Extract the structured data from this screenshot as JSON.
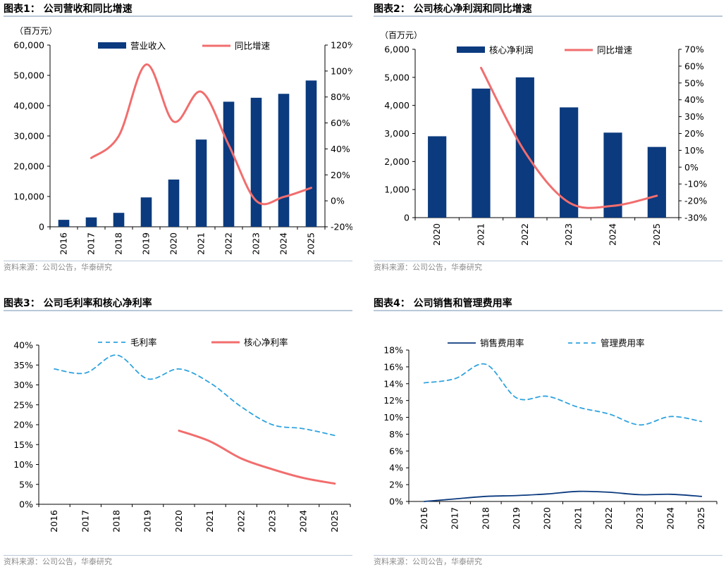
{
  "panels": [
    {
      "title": "图表1： 公司营收和同比增速",
      "source": "资料来源：公司公告，华泰研究"
    },
    {
      "title": "图表2： 公司核心净利润和同比增速",
      "source": "资料来源：公司公告，华泰研究"
    },
    {
      "title": "图表3： 公司毛利率和核心净利率",
      "source": "资料来源：公司公告，华泰研究"
    },
    {
      "title": "图表4： 公司销售和管理费用率",
      "source": "资料来源：公司公告，华泰研究"
    }
  ],
  "colors": {
    "bar": "#0b3a7e",
    "line": "#f26d6d",
    "dashed": "#2ea3df"
  },
  "chart_data": [
    {
      "type": "bar",
      "title": "公司营收和同比增速",
      "unit": "（百万元）",
      "categories": [
        "2016",
        "2017",
        "2018",
        "2019",
        "2020",
        "2021",
        "2022",
        "2023",
        "2024",
        "2025"
      ],
      "series": [
        {
          "name": "营业收入",
          "kind": "bar",
          "axis": "left",
          "values": [
            2300,
            3100,
            4600,
            9700,
            15600,
            28800,
            41300,
            42600,
            43900,
            48300
          ]
        },
        {
          "name": "同比增速",
          "kind": "line",
          "axis": "right",
          "values": [
            null,
            33,
            50,
            105,
            61,
            84,
            43,
            0,
            3,
            10
          ]
        }
      ],
      "ylim": [
        0,
        60000
      ],
      "yticks": [
        "0",
        "10,000",
        "20,000",
        "30,000",
        "40,000",
        "50,000",
        "60,000"
      ],
      "y2lim": [
        -20,
        120
      ],
      "y2ticks": [
        "-20%",
        "0%",
        "20%",
        "40%",
        "60%",
        "80%",
        "100%",
        "120%"
      ]
    },
    {
      "type": "bar",
      "title": "公司核心净利润和同比增速",
      "unit": "（百万元）",
      "categories": [
        "2020",
        "2021",
        "2022",
        "2023",
        "2024",
        "2025"
      ],
      "series": [
        {
          "name": "核心净利润",
          "kind": "bar",
          "axis": "left",
          "values": [
            2900,
            4600,
            5000,
            3930,
            3030,
            2520
          ]
        },
        {
          "name": "同比增速",
          "kind": "line",
          "axis": "right",
          "values": [
            null,
            59,
            9,
            -21,
            -23,
            -17
          ]
        }
      ],
      "ylim": [
        0,
        6000
      ],
      "yticks": [
        "0",
        "1,000",
        "2,000",
        "3,000",
        "4,000",
        "5,000",
        "6,000"
      ],
      "y2lim": [
        -30,
        70
      ],
      "y2ticks": [
        "-30%",
        "-20%",
        "-10%",
        "0%",
        "10%",
        "20%",
        "30%",
        "40%",
        "50%",
        "60%",
        "70%"
      ]
    },
    {
      "type": "line",
      "title": "公司毛利率和核心净利率",
      "categories": [
        "2016",
        "2017",
        "2018",
        "2019",
        "2020",
        "2021",
        "2022",
        "2023",
        "2024",
        "2025"
      ],
      "series": [
        {
          "name": "毛利率",
          "style": "dashed",
          "values": [
            34,
            33,
            37.5,
            31.5,
            34,
            30.5,
            24.5,
            20,
            19,
            17.3
          ]
        },
        {
          "name": "核心净利率",
          "style": "solid",
          "values": [
            null,
            null,
            null,
            null,
            18.5,
            15.8,
            11.5,
            8.8,
            6.6,
            5.2
          ]
        }
      ],
      "ylim": [
        0,
        40
      ],
      "yticks": [
        "0%",
        "5%",
        "10%",
        "15%",
        "20%",
        "25%",
        "30%",
        "35%",
        "40%"
      ]
    },
    {
      "type": "line",
      "title": "公司销售和管理费用率",
      "categories": [
        "2016",
        "2017",
        "2018",
        "2019",
        "2020",
        "2021",
        "2022",
        "2023",
        "2024",
        "2025"
      ],
      "series": [
        {
          "name": "销售费用率",
          "style": "solid",
          "values": [
            0.0,
            0.3,
            0.6,
            0.7,
            0.9,
            1.2,
            1.1,
            0.8,
            0.85,
            0.6
          ]
        },
        {
          "name": "管理费用率",
          "style": "dashed",
          "values": [
            14.1,
            14.6,
            16.3,
            12.3,
            12.5,
            11.2,
            10.4,
            9.1,
            10.1,
            9.5
          ]
        }
      ],
      "ylim": [
        0,
        18
      ],
      "yticks": [
        "0%",
        "2%",
        "4%",
        "6%",
        "8%",
        "10%",
        "12%",
        "14%",
        "16%",
        "18%"
      ]
    }
  ]
}
